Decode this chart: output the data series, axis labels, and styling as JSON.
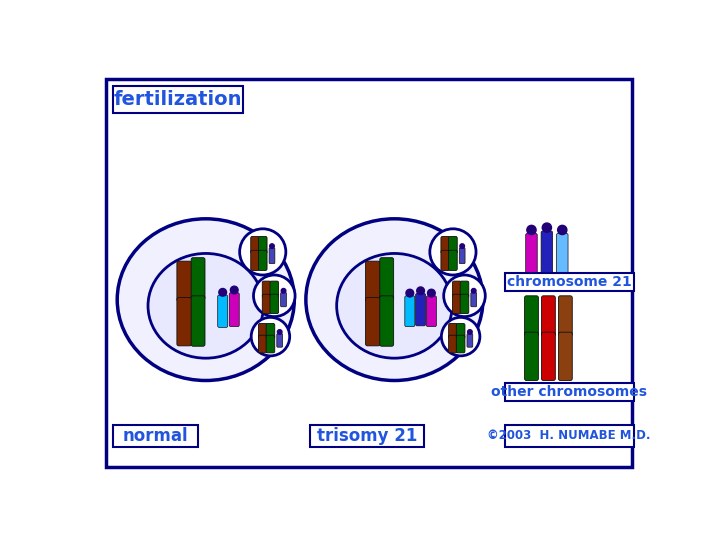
{
  "bg_color": "#ffffff",
  "border_color": "#000080",
  "cell_fill": "#f0f0ff",
  "nucleus_fill": "#e8e8ff",
  "brown": "#7B2800",
  "green": "#006400",
  "cyan": "#00BBFF",
  "magenta": "#CC00BB",
  "purple": "#220077",
  "blue": "#2222BB",
  "lightblue": "#66BBFF",
  "red": "#CC0000",
  "sienna": "#8B4010",
  "sperm_blue": "#4444BB",
  "label_color": "#2255DD",
  "title": "fertilization",
  "normal_label": "normal",
  "trisomy_label": "trisomy 21",
  "chr21_label": "chromosome 21",
  "other_label": "other chromosomes",
  "copyright": "©2003  H. NUMABE M.D."
}
